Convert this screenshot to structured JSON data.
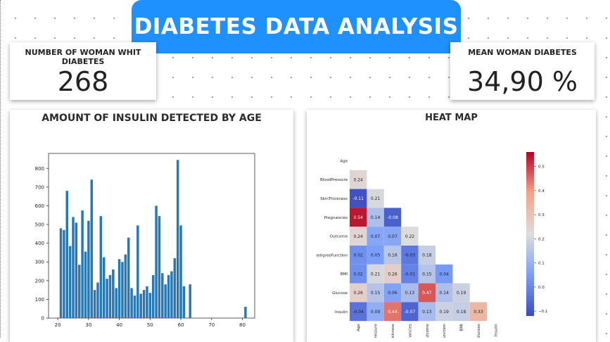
{
  "header": {
    "title": "DIABETES DATA ANALYSIS"
  },
  "kpi_left": {
    "label": "NUMBER OF WOMAN WHIT DIABETES",
    "value": "268"
  },
  "kpi_right": {
    "label": "MEAN WOMAN DIABETES",
    "value": "34,90 %"
  },
  "bar_panel": {
    "title": "AMOUNT OF INSULIN DETECTED BY AGE"
  },
  "heat_panel": {
    "title": "HEAT MAP"
  },
  "colors": {
    "banner": "#1e90ff",
    "bar": "#2878b5"
  },
  "chart_data": [
    {
      "type": "bar",
      "title": "AMOUNT OF INSULIN DETECTED BY AGE",
      "x": [
        21,
        22,
        23,
        24,
        25,
        26,
        27,
        28,
        29,
        30,
        31,
        32,
        33,
        34,
        35,
        36,
        37,
        38,
        39,
        40,
        41,
        42,
        43,
        44,
        45,
        46,
        47,
        48,
        49,
        50,
        51,
        52,
        53,
        54,
        55,
        56,
        57,
        58,
        59,
        60,
        61,
        63,
        81
      ],
      "values": [
        480,
        470,
        680,
        385,
        540,
        510,
        285,
        575,
        355,
        520,
        740,
        150,
        190,
        545,
        325,
        210,
        230,
        260,
        160,
        315,
        300,
        340,
        430,
        160,
        120,
        495,
        130,
        150,
        170,
        135,
        230,
        600,
        545,
        240,
        180,
        230,
        250,
        320,
        845,
        495,
        170,
        180,
        60
      ],
      "xlim": [
        17,
        84
      ],
      "ylim": [
        0,
        880
      ],
      "xticks": [
        20,
        30,
        40,
        50,
        60,
        70,
        80
      ],
      "yticks": [
        0,
        100,
        200,
        300,
        400,
        500,
        600,
        700,
        800
      ]
    },
    {
      "type": "heatmap",
      "title": "HEAT MAP",
      "labels": [
        "Age",
        "BloodPressure",
        "SkinThickness",
        "Pregnancies",
        "Outcome",
        "DiabetesPedigreeFunction",
        "BMI",
        "Glucose",
        "Insulin"
      ],
      "row_labels_shown": [
        "Age",
        "BloodPressure",
        "SkinThickness",
        "Pregnancies",
        "Outcome",
        "edigreeFunction",
        "BMI",
        "Glucose",
        "Insulin"
      ],
      "col_labels_shown": [
        "Age",
        "dPressure",
        "Thickness",
        "egnancies",
        "Outcome",
        "eFunction",
        "BMI",
        "Glucose",
        "Insulin"
      ],
      "cells": [
        {
          "row": 1,
          "col": 0,
          "value": 0.24,
          "label": "0.24"
        },
        {
          "row": 2,
          "col": 0,
          "value": -0.11,
          "label": "-0.11"
        },
        {
          "row": 2,
          "col": 1,
          "value": 0.21,
          "label": "0.21"
        },
        {
          "row": 3,
          "col": 0,
          "value": 0.54,
          "label": "0.54"
        },
        {
          "row": 3,
          "col": 1,
          "value": 0.14,
          "label": "0.14"
        },
        {
          "row": 3,
          "col": 2,
          "value": -0.08,
          "label": "-0.08"
        },
        {
          "row": 4,
          "col": 0,
          "value": 0.24,
          "label": "0.24"
        },
        {
          "row": 4,
          "col": 1,
          "value": 0.07,
          "label": "0.07"
        },
        {
          "row": 4,
          "col": 2,
          "value": 0.07,
          "label": "0.07"
        },
        {
          "row": 4,
          "col": 3,
          "value": 0.22,
          "label": "0.22"
        },
        {
          "row": 5,
          "col": 0,
          "value": 0.02,
          "label": "0.02"
        },
        {
          "row": 5,
          "col": 1,
          "value": 0.05,
          "label": "0.05"
        },
        {
          "row": 5,
          "col": 2,
          "value": 0.16,
          "label": "0.16"
        },
        {
          "row": 5,
          "col": 3,
          "value": -0.03,
          "label": "-0.03"
        },
        {
          "row": 5,
          "col": 4,
          "value": 0.18,
          "label": "0.18"
        },
        {
          "row": 6,
          "col": 0,
          "value": 0.02,
          "label": "0.02"
        },
        {
          "row": 6,
          "col": 1,
          "value": 0.21,
          "label": "0.21"
        },
        {
          "row": 6,
          "col": 2,
          "value": 0.26,
          "label": "0.26"
        },
        {
          "row": 6,
          "col": 3,
          "value": -0.01,
          "label": "-0.01"
        },
        {
          "row": 6,
          "col": 4,
          "value": 0.15,
          "label": "0.15"
        },
        {
          "row": 6,
          "col": 5,
          "value": 0.04,
          "label": "0.04"
        },
        {
          "row": 7,
          "col": 0,
          "value": 0.26,
          "label": "0.26"
        },
        {
          "row": 7,
          "col": 1,
          "value": 0.15,
          "label": "0.15"
        },
        {
          "row": 7,
          "col": 2,
          "value": 0.06,
          "label": "0.06"
        },
        {
          "row": 7,
          "col": 3,
          "value": 0.13,
          "label": "0.13"
        },
        {
          "row": 7,
          "col": 4,
          "value": 0.47,
          "label": "0.47"
        },
        {
          "row": 7,
          "col": 5,
          "value": 0.14,
          "label": "0.14"
        },
        {
          "row": 7,
          "col": 6,
          "value": 0.19,
          "label": "0.19"
        },
        {
          "row": 8,
          "col": 0,
          "value": -0.04,
          "label": "-0.04"
        },
        {
          "row": 8,
          "col": 1,
          "value": 0.09,
          "label": "0.09"
        },
        {
          "row": 8,
          "col": 2,
          "value": 0.44,
          "label": "0.44"
        },
        {
          "row": 8,
          "col": 3,
          "value": -0.07,
          "label": "-0.07"
        },
        {
          "row": 8,
          "col": 4,
          "value": 0.13,
          "label": "0.13"
        },
        {
          "row": 8,
          "col": 5,
          "value": 0.19,
          "label": "0.19"
        },
        {
          "row": 8,
          "col": 6,
          "value": 0.18,
          "label": "0.18"
        },
        {
          "row": 8,
          "col": 7,
          "value": 0.33,
          "label": "0.33"
        }
      ],
      "vmin": -0.12,
      "vmax": 0.56,
      "colorbar_ticks": [
        -0.1,
        0.0,
        0.1,
        0.2,
        0.3,
        0.4,
        0.5
      ],
      "colorbar_labels": [
        "−0.1",
        "0.0",
        "0.1",
        "0.2",
        "0.3",
        "0.4",
        "0.5"
      ],
      "colormap": "coolwarm"
    }
  ]
}
